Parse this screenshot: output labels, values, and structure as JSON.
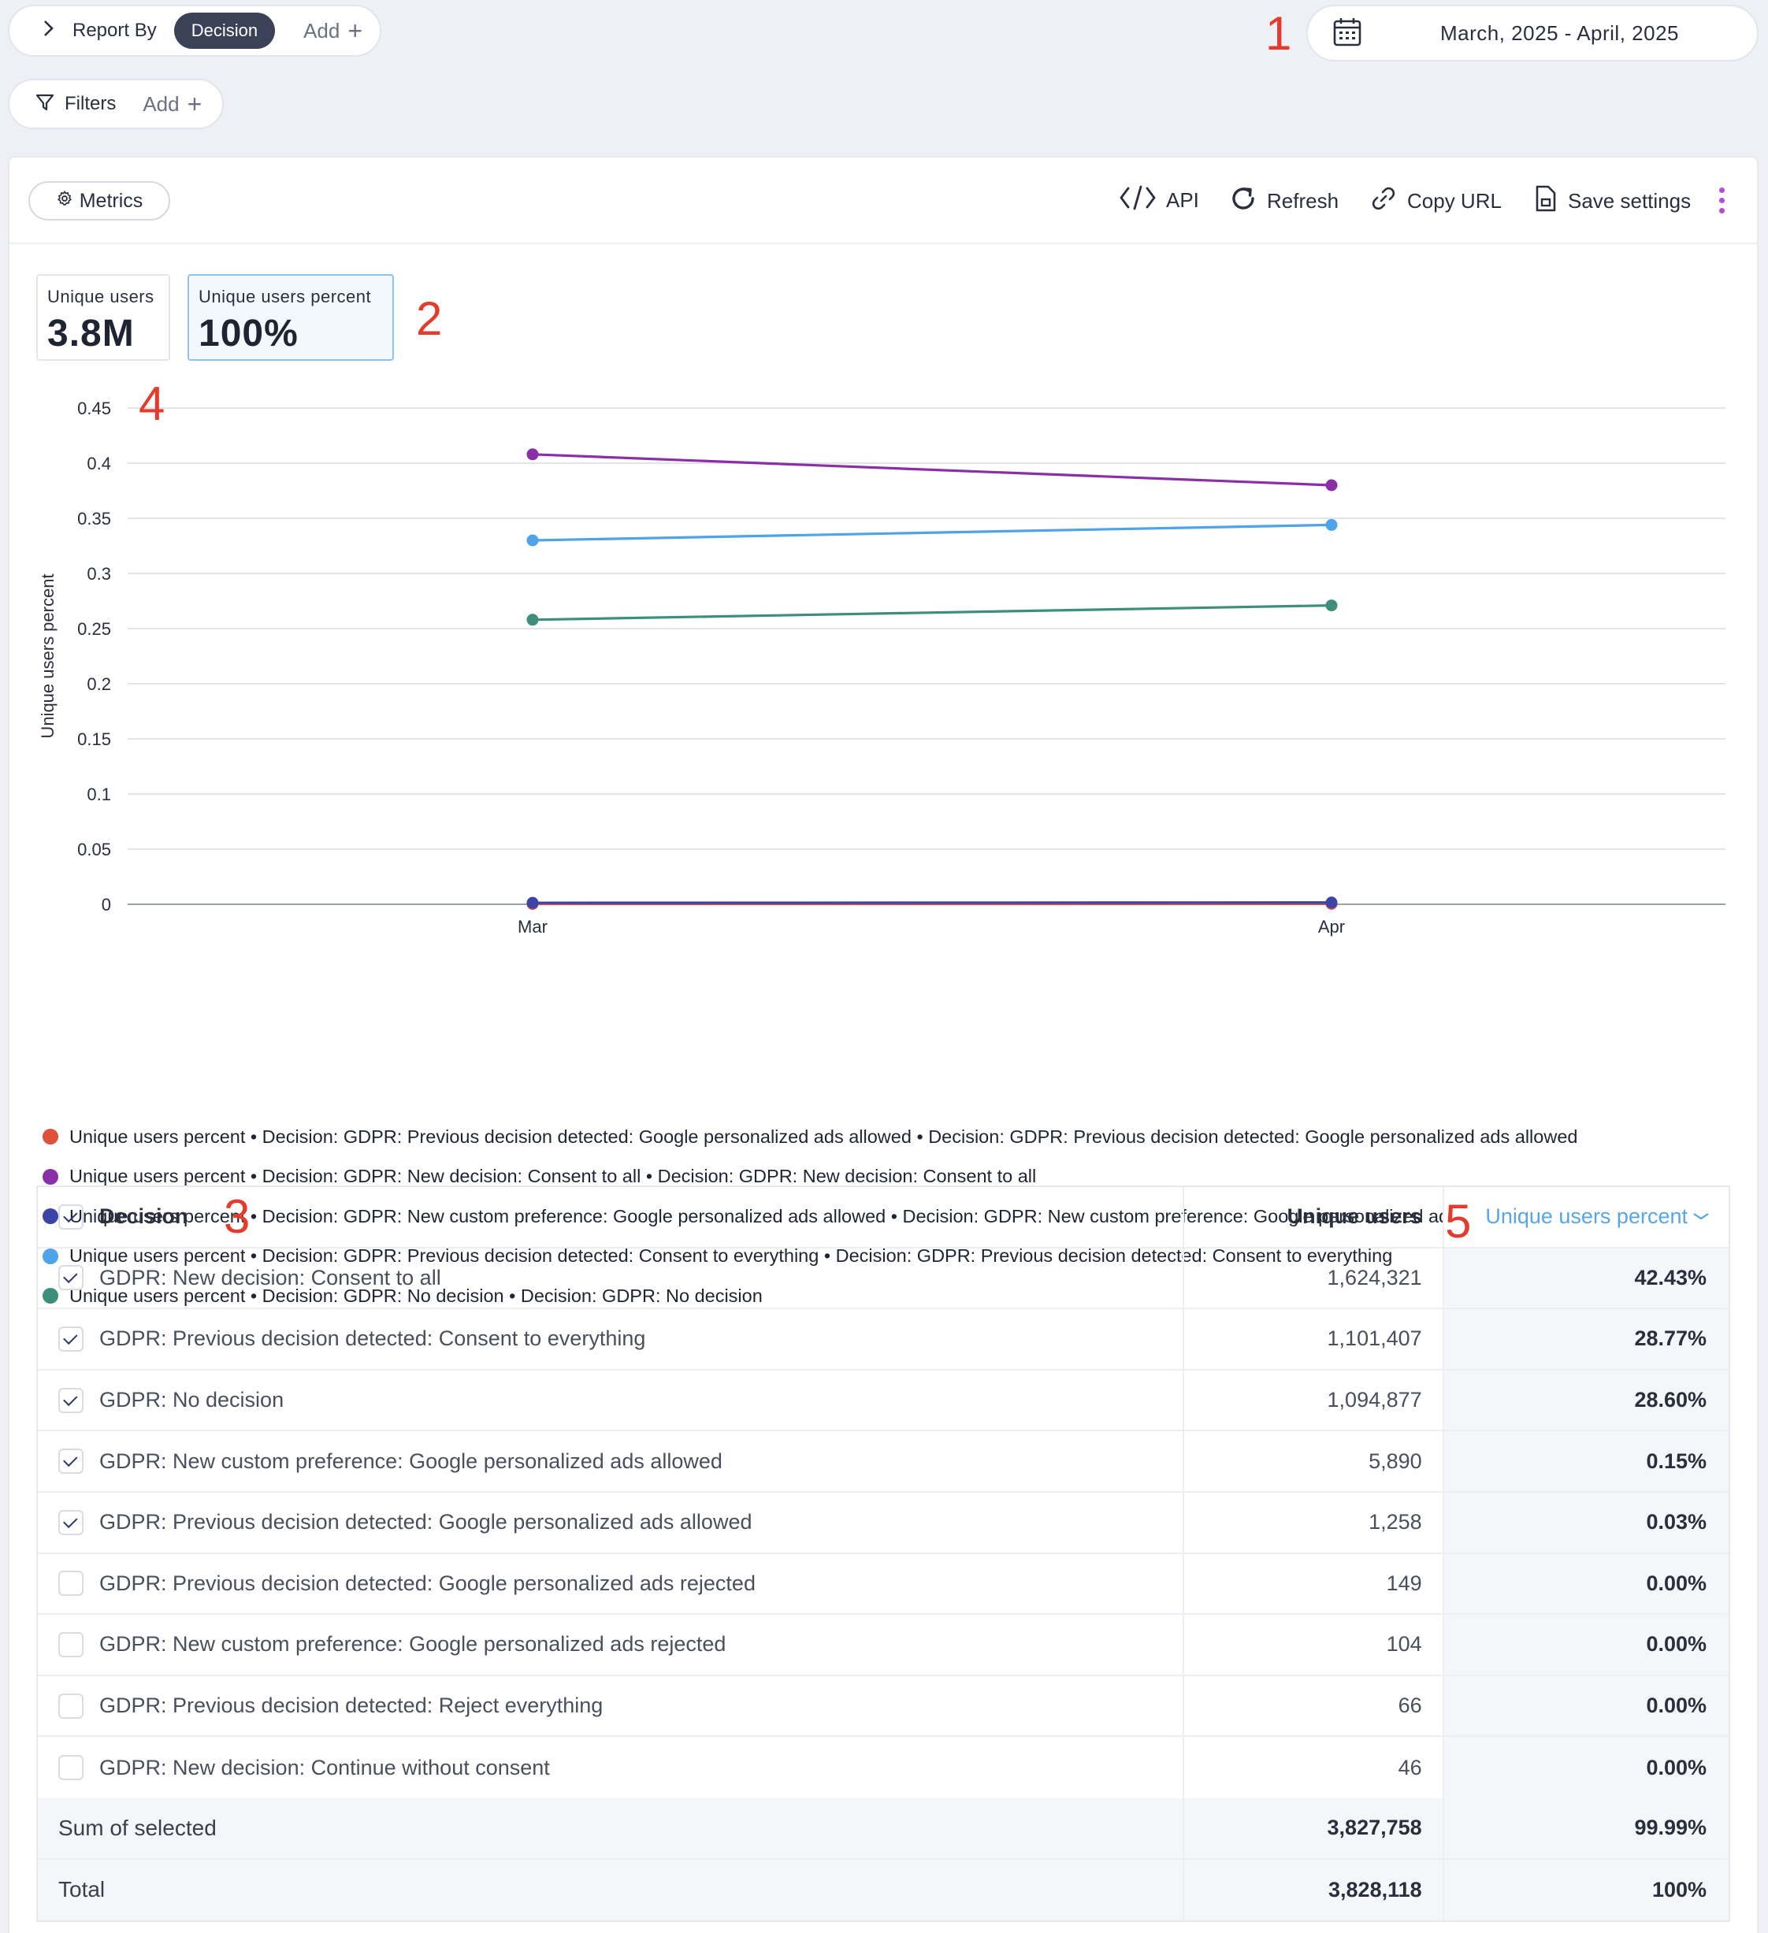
{
  "report_by": {
    "label": "Report By",
    "chip": "Decision",
    "add_label": "Add"
  },
  "filters": {
    "label": "Filters",
    "add_label": "Add"
  },
  "date_range": {
    "label": "March, 2025 - April, 2025"
  },
  "annotations": [
    "1",
    "2",
    "3",
    "4",
    "5"
  ],
  "toolbar": {
    "metrics_label": "Metrics",
    "api_label": "API",
    "refresh_label": "Refresh",
    "copy_url_label": "Copy URL",
    "save_settings_label": "Save settings"
  },
  "kpis": [
    {
      "label": "Unique users",
      "value": "3.8M",
      "selected": false
    },
    {
      "label": "Unique users percent",
      "value": "100%",
      "selected": true
    }
  ],
  "chart_data": {
    "type": "line",
    "ylabel": "Unique users percent",
    "xlabel": "",
    "categories": [
      "Mar",
      "Apr"
    ],
    "ylim": [
      0,
      0.45
    ],
    "yticks": [
      "0",
      "0.05",
      "0.1",
      "0.15",
      "0.2",
      "0.25",
      "0.3",
      "0.35",
      "0.4",
      "0.45"
    ],
    "grid": true,
    "legend_position": "bottom",
    "series": [
      {
        "name": "Unique users percent • Decision: GDPR: Previous decision detected: Google personalized ads allowed • Decision: GDPR: Previous decision detected: Google personalized ads allowed",
        "color": "#e0503a",
        "values": [
          0.0003,
          0.0004
        ]
      },
      {
        "name": "Unique users percent • Decision: GDPR: New decision: Consent to all • Decision: GDPR: New decision: Consent to all",
        "color": "#8a2fa8",
        "values": [
          0.408,
          0.38
        ]
      },
      {
        "name": "Unique users percent • Decision: GDPR: New custom preference: Google personalized ads allowed • Decision: GDPR: New custom preference: Google personalized ads allowed",
        "color": "#3b45a8",
        "values": [
          0.0013,
          0.0016
        ]
      },
      {
        "name": "Unique users percent • Decision: GDPR: Previous decision detected: Consent to everything • Decision: GDPR: Previous decision detected: Consent to everything",
        "color": "#4fa3e8",
        "values": [
          0.33,
          0.344
        ]
      },
      {
        "name": "Unique users percent • Decision: GDPR: No decision • Decision: GDPR: No decision",
        "color": "#3d8f7c",
        "values": [
          0.258,
          0.271
        ]
      }
    ],
    "draw_order": [
      0,
      2,
      4,
      3,
      1
    ]
  },
  "table": {
    "headers": {
      "decision": "Decision",
      "unique_users": "Unique users",
      "percent": "Unique users percent"
    },
    "header_checked": true,
    "rows": [
      {
        "checked": true,
        "decision": "GDPR: New decision: Consent to all",
        "users": "1,624,321",
        "percent": "42.43%"
      },
      {
        "checked": true,
        "decision": "GDPR: Previous decision detected: Consent to everything",
        "users": "1,101,407",
        "percent": "28.77%"
      },
      {
        "checked": true,
        "decision": "GDPR: No decision",
        "users": "1,094,877",
        "percent": "28.60%"
      },
      {
        "checked": true,
        "decision": "GDPR: New custom preference: Google personalized ads allowed",
        "users": "5,890",
        "percent": "0.15%"
      },
      {
        "checked": true,
        "decision": "GDPR: Previous decision detected: Google personalized ads allowed",
        "users": "1,258",
        "percent": "0.03%"
      },
      {
        "checked": false,
        "decision": "GDPR: Previous decision detected: Google personalized ads rejected",
        "users": "149",
        "percent": "0.00%"
      },
      {
        "checked": false,
        "decision": "GDPR: New custom preference: Google personalized ads rejected",
        "users": "104",
        "percent": "0.00%"
      },
      {
        "checked": false,
        "decision": "GDPR: Previous decision detected: Reject everything",
        "users": "66",
        "percent": "0.00%"
      },
      {
        "checked": false,
        "decision": "GDPR: New decision: Continue without consent",
        "users": "46",
        "percent": "0.00%"
      }
    ],
    "sum_selected": {
      "label": "Sum of selected",
      "users": "3,827,758",
      "percent": "99.99%"
    },
    "total": {
      "label": "Total",
      "users": "3,828,118",
      "percent": "100%"
    }
  },
  "icons": [
    "chevron-right-icon",
    "plus-icon",
    "filter-icon",
    "calendar-icon",
    "gear-icon",
    "code-icon",
    "refresh-icon",
    "link-icon",
    "document-icon",
    "kebab-icon",
    "chevron-down-icon",
    "checkbox-icon"
  ]
}
